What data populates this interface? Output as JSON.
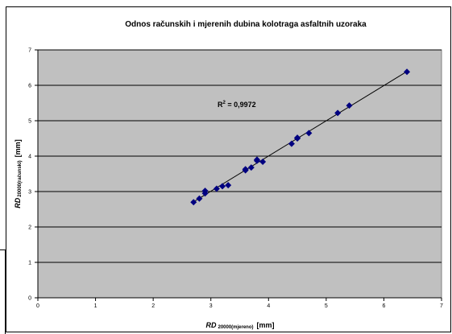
{
  "chart_data": {
    "type": "scatter",
    "title": "Odnos računskih i mjerenih dubina kolotraga asfaltnih uzoraka",
    "xlabel": {
      "main": "RD",
      "sub": "20000(mjereno)",
      "unit": "[mm]"
    },
    "ylabel": {
      "main": "RD",
      "sub": "20000(računski)",
      "unit": "[mm]"
    },
    "xlim": [
      0,
      7
    ],
    "ylim": [
      0,
      7
    ],
    "x_ticks": [
      "0",
      "1",
      "2",
      "3",
      "4",
      "5",
      "6",
      "7"
    ],
    "y_ticks": [
      "0",
      "1",
      "2",
      "3",
      "4",
      "5",
      "6",
      "7"
    ],
    "grid": "horizontal",
    "plot_background": "#c0c0c0",
    "marker": "diamond",
    "marker_color": "#000080",
    "trendline": {
      "type": "linear",
      "x": [
        2.7,
        6.4
      ],
      "y": [
        2.71,
        6.39
      ]
    },
    "annotation": {
      "base": "R",
      "sup": "2",
      "rest": " = 0,9972"
    },
    "points": [
      {
        "x": 2.7,
        "y": 2.7
      },
      {
        "x": 2.8,
        "y": 2.8
      },
      {
        "x": 2.9,
        "y": 2.95
      },
      {
        "x": 2.9,
        "y": 3.02
      },
      {
        "x": 3.1,
        "y": 3.08
      },
      {
        "x": 3.2,
        "y": 3.15
      },
      {
        "x": 3.3,
        "y": 3.18
      },
      {
        "x": 3.6,
        "y": 3.6
      },
      {
        "x": 3.6,
        "y": 3.63
      },
      {
        "x": 3.7,
        "y": 3.68
      },
      {
        "x": 3.8,
        "y": 3.9
      },
      {
        "x": 3.8,
        "y": 3.87
      },
      {
        "x": 3.9,
        "y": 3.84
      },
      {
        "x": 4.4,
        "y": 4.35
      },
      {
        "x": 4.5,
        "y": 4.5
      },
      {
        "x": 4.5,
        "y": 4.52
      },
      {
        "x": 4.7,
        "y": 4.65
      },
      {
        "x": 5.2,
        "y": 5.22
      },
      {
        "x": 5.4,
        "y": 5.43
      },
      {
        "x": 6.4,
        "y": 6.38
      }
    ]
  }
}
